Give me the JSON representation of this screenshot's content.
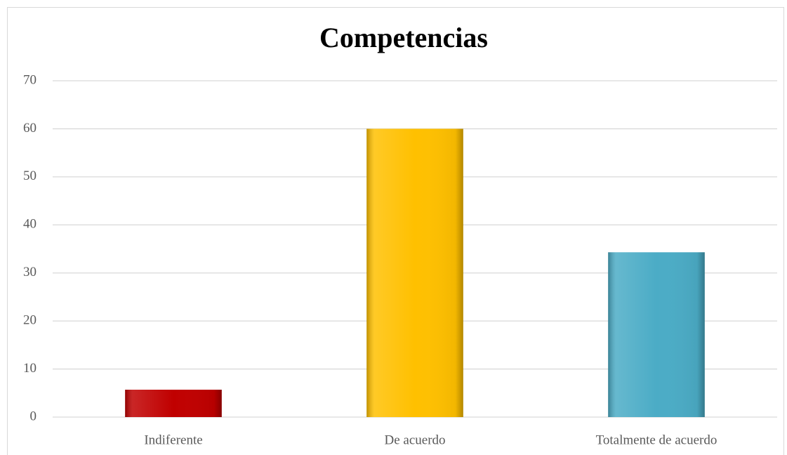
{
  "chart_data": {
    "type": "bar",
    "title": "Competencias",
    "categories": [
      "Indiferente",
      "De acuerdo",
      "Totalmente de acuerdo"
    ],
    "values": [
      5.7,
      60,
      34.3
    ],
    "colors": [
      "#c00000",
      "#ffc000",
      "#4bacc6"
    ],
    "ylim": [
      0,
      70
    ],
    "yticks": [
      0,
      10,
      20,
      30,
      40,
      50,
      60,
      70
    ],
    "grid": true
  }
}
